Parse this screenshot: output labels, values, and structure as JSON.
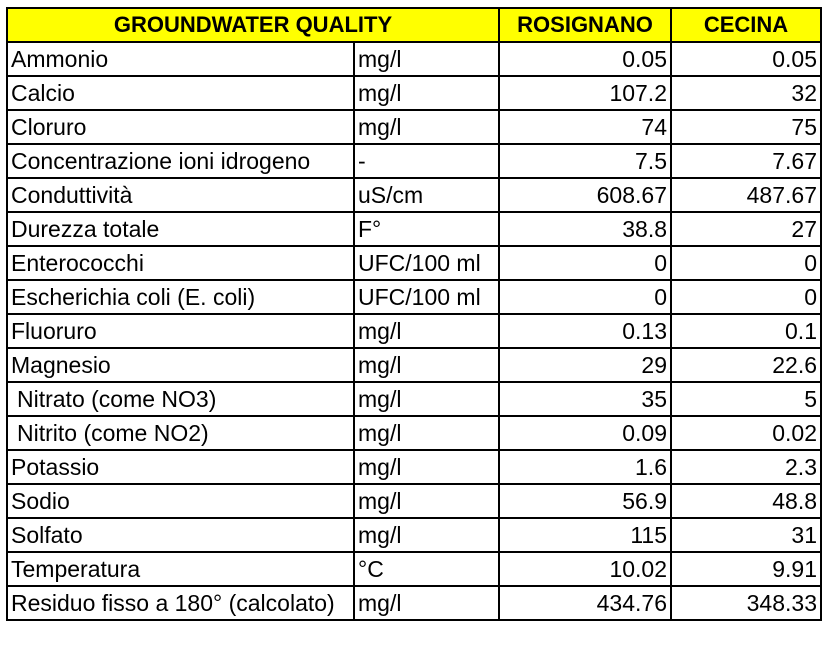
{
  "table": {
    "headers": {
      "title": "GROUNDWATER QUALITY",
      "rosignano": "ROSIGNANO",
      "cecina": "CECINA"
    },
    "rows": [
      {
        "parameter": "Ammonio",
        "unit": "mg/l",
        "rosignano": "0.05",
        "cecina": "0.05"
      },
      {
        "parameter": "Calcio",
        "unit": "mg/l",
        "rosignano": "107.2",
        "cecina": "32"
      },
      {
        "parameter": "Cloruro",
        "unit": "mg/l",
        "rosignano": "74",
        "cecina": "75"
      },
      {
        "parameter": "Concentrazione ioni idrogeno",
        "unit": "-",
        "rosignano": "7.5",
        "cecina": "7.67"
      },
      {
        "parameter": "Conduttività",
        "unit": "uS/cm",
        "rosignano": "608.67",
        "cecina": "487.67"
      },
      {
        "parameter": "Durezza totale",
        "unit": "F°",
        "rosignano": "38.8",
        "cecina": "27"
      },
      {
        "parameter": "Enterococchi",
        "unit": "UFC/100 ml",
        "rosignano": "0",
        "cecina": "0"
      },
      {
        "parameter": "Escherichia coli (E. coli)",
        "unit": "UFC/100 ml",
        "rosignano": "0",
        "cecina": "0"
      },
      {
        "parameter": "Fluoruro",
        "unit": "mg/l",
        "rosignano": "0.13",
        "cecina": "0.1"
      },
      {
        "parameter": "Magnesio",
        "unit": "mg/l",
        "rosignano": "29",
        "cecina": "22.6"
      },
      {
        "parameter": "Nitrato (come NO3)",
        "unit": "mg/l",
        "rosignano": "35",
        "cecina": "5"
      },
      {
        "parameter": "Nitrito (come NO2)",
        "unit": "mg/l",
        "rosignano": "0.09",
        "cecina": "0.02"
      },
      {
        "parameter": "Potassio",
        "unit": "mg/l",
        "rosignano": "1.6",
        "cecina": "2.3"
      },
      {
        "parameter": "Sodio",
        "unit": "mg/l",
        "rosignano": "56.9",
        "cecina": "48.8"
      },
      {
        "parameter": "Solfato",
        "unit": "mg/l",
        "rosignano": "115",
        "cecina": "31"
      },
      {
        "parameter": "Temperatura",
        "unit": "°C",
        "rosignano": "10.02",
        "cecina": "9.91"
      },
      {
        "parameter": "Residuo fisso a 180° (calcolato)",
        "unit": "mg/l",
        "rosignano": "434.76",
        "cecina": "348.33"
      }
    ]
  },
  "colors": {
    "header_background": "#ffff00",
    "border": "#000000",
    "text": "#000000"
  }
}
